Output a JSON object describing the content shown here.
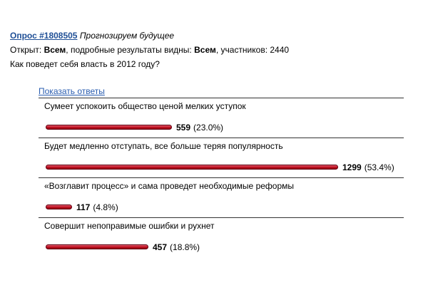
{
  "poll": {
    "link": "Опрос #1808505",
    "subtitle": "Прогнозируем будущее",
    "meta": {
      "prefix": "Открыт:",
      "open_to": "Всем",
      "mid": ", подробные результаты видны:",
      "visible_to": "Всем",
      "suffix": ", участников: 2440"
    },
    "question": "Как поведет себя власть в 2012 году?",
    "show_answers": "Показать ответы",
    "accent_color": "#c01020",
    "options": [
      {
        "text": "Сумеет успокоить общество ценой мелких уступок",
        "count": "559",
        "percent": "(23.0%)",
        "share": 0.23
      },
      {
        "text": "Будет медленно отступать, все больше теряя популярность",
        "count": "1299",
        "percent": "(53.4%)",
        "share": 0.534
      },
      {
        "text": "«Возглавит процесс» и сама проведет необходимые реформы",
        "count": "117",
        "percent": "(4.8%)",
        "share": 0.048
      },
      {
        "text": "Совершит непоправимые ошибки и рухнет",
        "count": "457",
        "percent": "(18.8%)",
        "share": 0.188
      }
    ]
  }
}
